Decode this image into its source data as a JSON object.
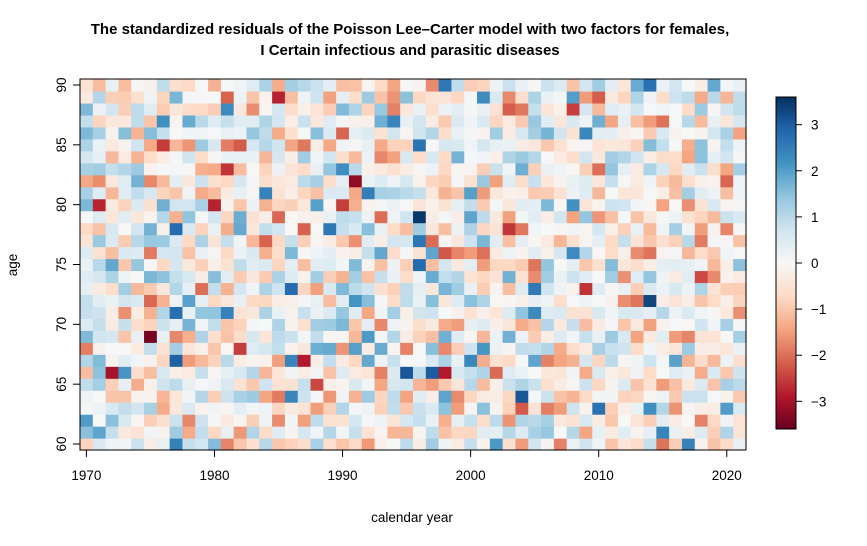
{
  "chart_data": {
    "type": "heatmap",
    "title": "The standardized residuals of the Poisson Lee–Carter model with two factors for females,",
    "subtitle": "I Certain infectious and parasitic diseases",
    "xlabel": "calendar year",
    "ylabel": "age",
    "x_range": [
      1970,
      2021
    ],
    "y_range": [
      60,
      90
    ],
    "x_ticks": [
      "1970",
      "1980",
      "1990",
      "2000",
      "2010",
      "2020"
    ],
    "y_ticks": [
      "60",
      "65",
      "70",
      "75",
      "80",
      "85",
      "90"
    ],
    "colorbar_ticks": [
      "3",
      "2",
      "1",
      "0",
      "−1",
      "−2",
      "−3"
    ],
    "zlim": [
      -3.6,
      3.6
    ],
    "colorscale": [
      "#67001f",
      "#b2182b",
      "#d6604d",
      "#f4a582",
      "#fddbc7",
      "#f7f7f7",
      "#d1e5f0",
      "#92c5de",
      "#4393c3",
      "#2166ac",
      "#053061"
    ],
    "grid": false,
    "legend": "right colorbar"
  }
}
